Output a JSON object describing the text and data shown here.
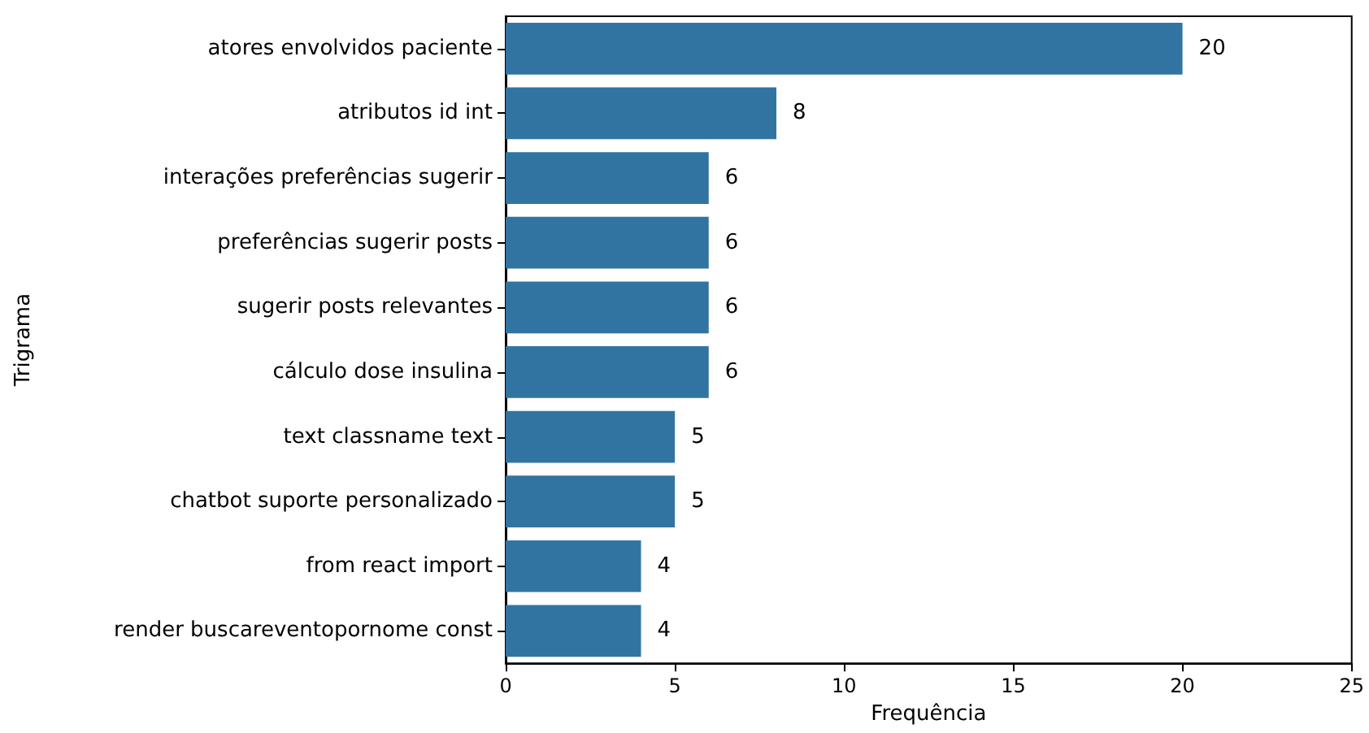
{
  "chart_data": {
    "type": "bar",
    "orientation": "horizontal",
    "xlabel": "Frequência",
    "ylabel": "Trigrama",
    "categories": [
      "atores envolvidos paciente",
      "atributos id int",
      "interações preferências sugerir",
      "preferências sugerir posts",
      "sugerir posts relevantes",
      "cálculo dose insulina",
      "text classname text",
      "chatbot suporte personalizado",
      "from react import",
      "render buscareventopornome const"
    ],
    "values": [
      20,
      8,
      6,
      6,
      6,
      6,
      5,
      5,
      4,
      4
    ],
    "color": "#3274a1",
    "xlim": [
      0,
      25
    ],
    "xticks": [
      0,
      5,
      10,
      15,
      20,
      25
    ],
    "data_labels": true
  }
}
